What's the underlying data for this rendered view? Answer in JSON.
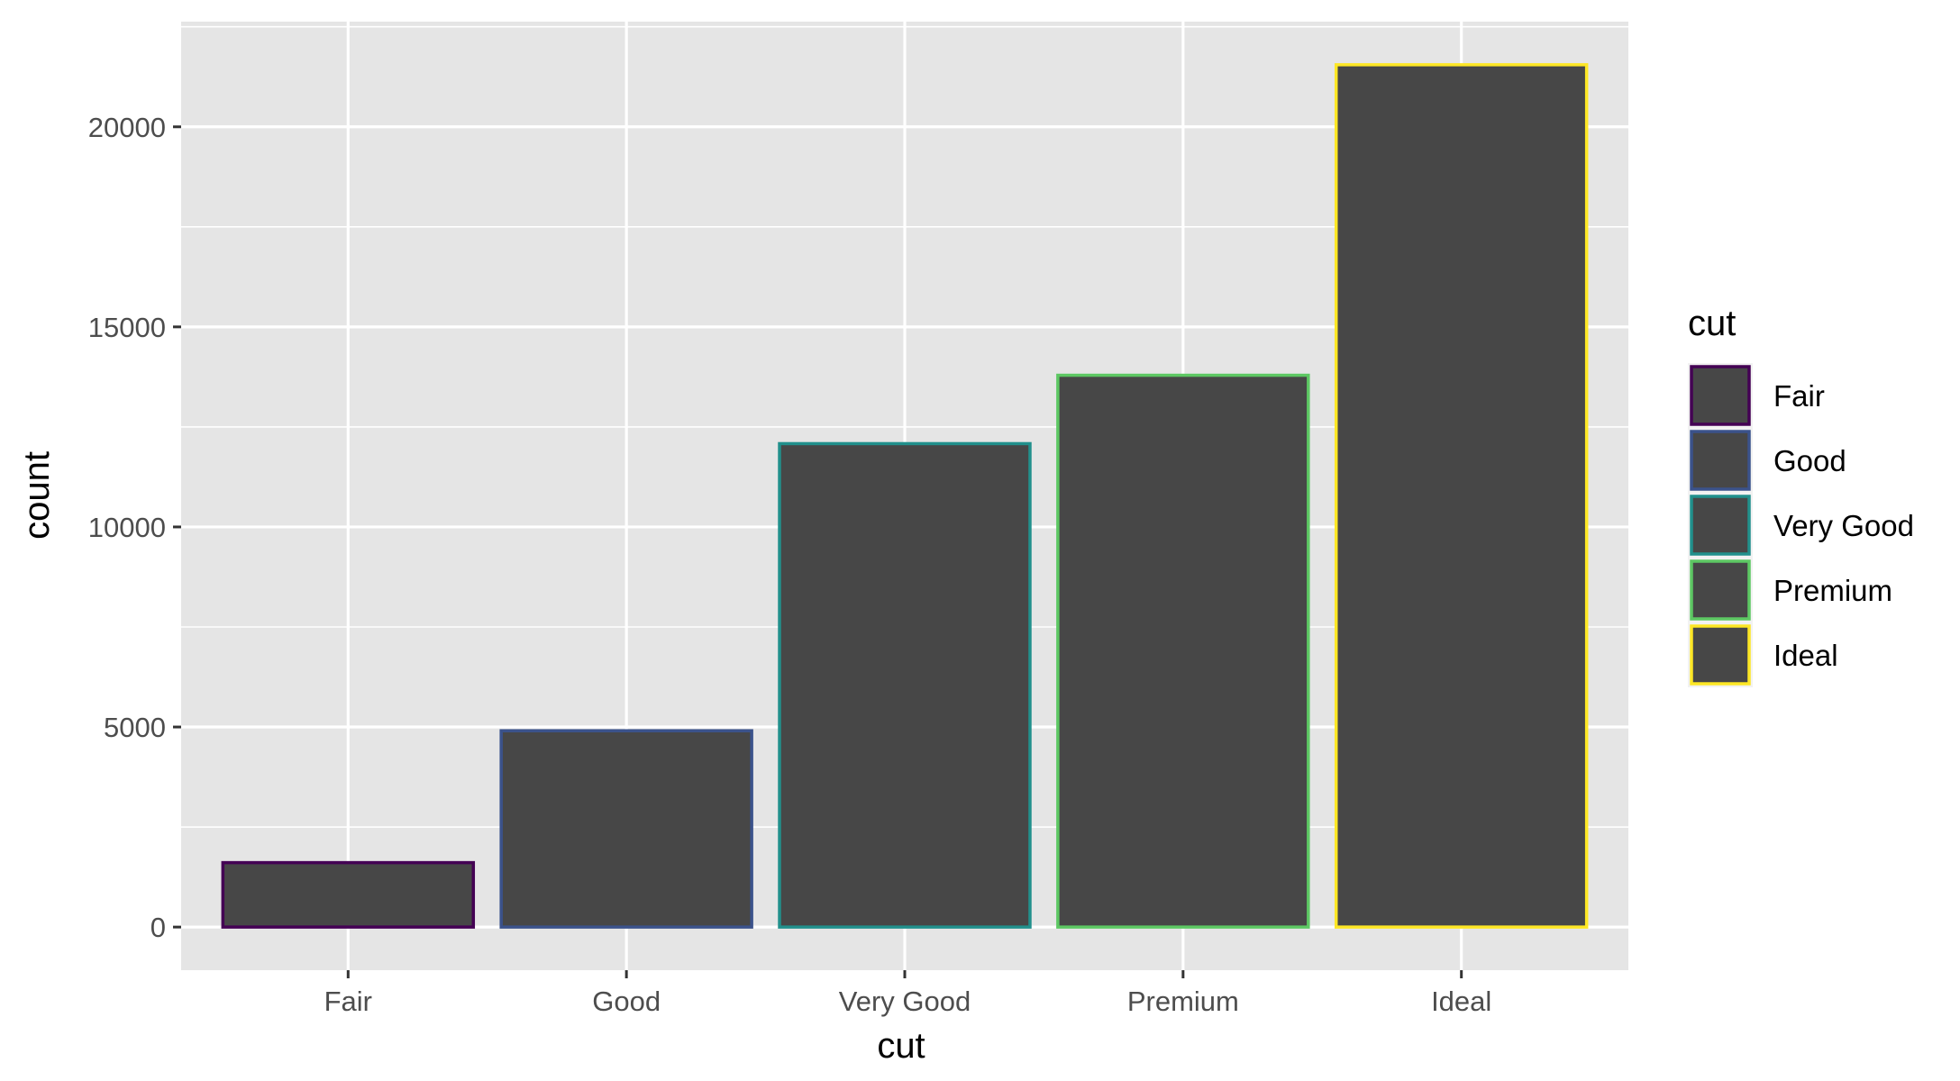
{
  "chart_data": {
    "type": "bar",
    "categories": [
      "Fair",
      "Good",
      "Very Good",
      "Premium",
      "Ideal"
    ],
    "values": [
      1610,
      4906,
      12082,
      13791,
      21551
    ],
    "xlabel": "cut",
    "ylabel": "count",
    "ylim": [
      -1078,
      22629
    ],
    "yticks": [
      0,
      5000,
      10000,
      15000,
      20000
    ],
    "ytick_labels": [
      "0",
      "5000",
      "10000",
      "15000",
      "20000"
    ],
    "grid": true,
    "fill_color": "#474747",
    "outline_colors": [
      "#440154",
      "#3b528b",
      "#21908c",
      "#5dc863",
      "#fde725"
    ],
    "panel_background": "#e5e5e5",
    "legend": {
      "title": "cut",
      "placement": "right",
      "entries": [
        "Fair",
        "Good",
        "Very Good",
        "Premium",
        "Ideal"
      ]
    }
  }
}
